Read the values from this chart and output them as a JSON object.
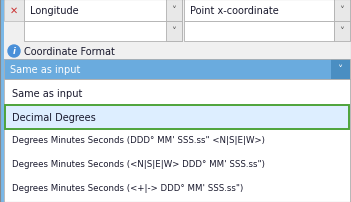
{
  "bg_color": "#f0f0f0",
  "dropdown1_label": "Longitude",
  "dropdown2_label": "Point x-coordinate",
  "coord_format_label": "Coordinate Format",
  "dropdown_selected": "Same as input",
  "menu_items": [
    "Same as input",
    "Decimal Degrees",
    "Degrees Minutes Seconds (DDD° MM' SSS.ss\" <N|S|E|W>)",
    "Degrees Minutes Seconds (<N|S|E|W> DDD° MM' SSS.ss\")",
    "Degrees Minutes Seconds (<+|-> DDD° MM' SSS.ss\")"
  ],
  "highlighted_item": "Decimal Degrees",
  "highlight_bg": "#ddeeff",
  "highlight_border": "#4ea33a",
  "selected_bg": "#6aabde",
  "selected_text_color": "#ffffff",
  "dropdown_arrow_bg": "#4a8ec2",
  "menu_bg": "#ffffff",
  "menu_bg2": "#f5f5f5",
  "border_color": "#b0b0b0",
  "text_color": "#1a1a2e",
  "info_icon_color": "#4a90d9",
  "red_x_color": "#cc3333",
  "left_stripe_color": "#7ab8e8",
  "font_size": 7.0,
  "small_font_size": 6.2
}
